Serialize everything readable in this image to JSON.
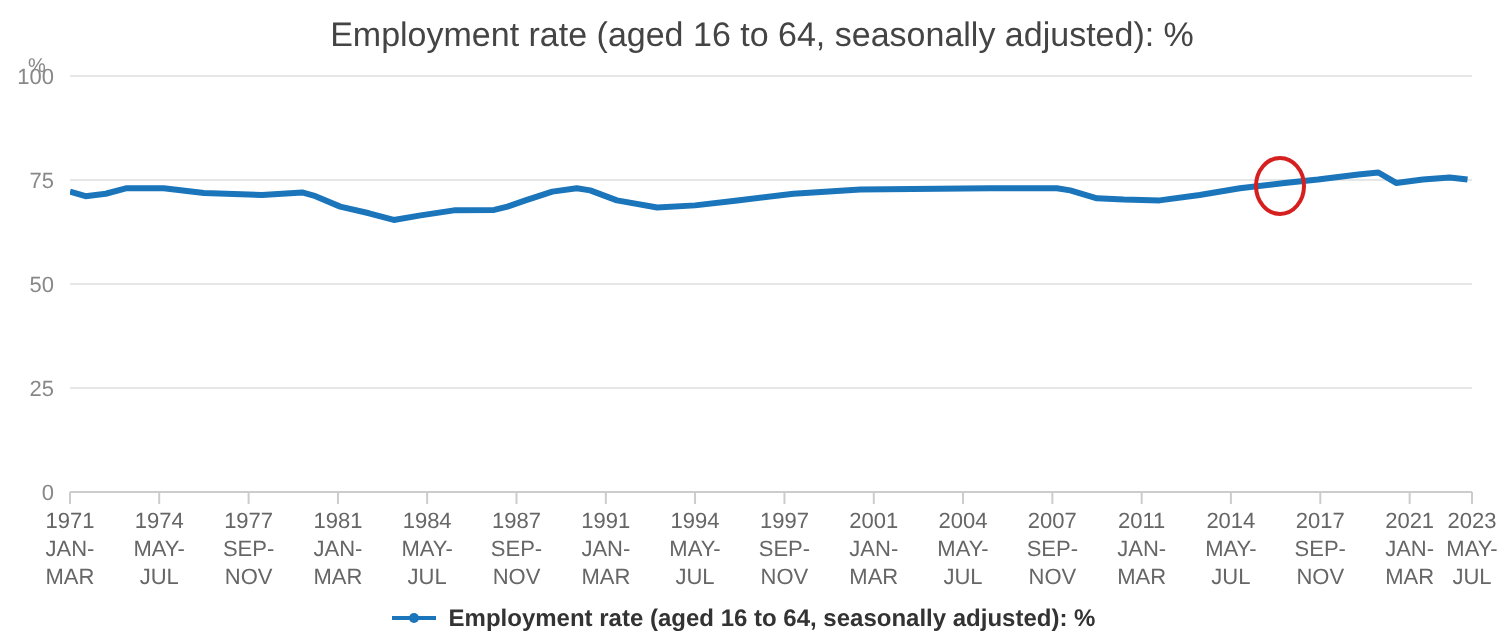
{
  "chart_data": {
    "type": "line",
    "title": "Employment rate (aged 16 to 64, seasonally adjusted): %",
    "ylabel": "%",
    "x": [
      "1971-01",
      "1971-08",
      "1972-05",
      "1973-02",
      "1974-07",
      "1976-01",
      "1978-03",
      "1979-09",
      "1980-03",
      "1981-02",
      "1982-03",
      "1983-02",
      "1984-02",
      "1985-05",
      "1986-11",
      "1987-05",
      "1988-01",
      "1989-01",
      "1989-12",
      "1990-06",
      "1991-06",
      "1992-12",
      "1994-05",
      "1995-11",
      "1998-01",
      "2000-07",
      "2005-05",
      "2007-11",
      "2008-05",
      "2009-05",
      "2010-05",
      "2011-09",
      "2013-03",
      "2014-09",
      "2016-05",
      "2017-08",
      "2019-02",
      "2019-11",
      "2020-07",
      "2021-07",
      "2022-07",
      "2023-03"
    ],
    "series": [
      {
        "name": "Employment rate (aged 16 to 64, seasonally adjusted): %",
        "color": "#1a75bb",
        "values": [
          72.2,
          71.1,
          71.7,
          73.0,
          73.0,
          71.9,
          71.4,
          72.0,
          71.1,
          68.6,
          67.0,
          65.4,
          66.5,
          67.7,
          67.8,
          68.6,
          70.1,
          72.2,
          73.0,
          72.5,
          70.1,
          68.4,
          68.9,
          70.0,
          71.7,
          72.7,
          73.0,
          73.0,
          72.5,
          70.6,
          70.3,
          70.1,
          71.4,
          73.0,
          74.3,
          75.1,
          76.3,
          76.8,
          74.3,
          75.1,
          75.6,
          75.1
        ]
      }
    ],
    "xlim": [
      "1971-01",
      "2023-05"
    ],
    "xticks": [
      {
        "value": "1971-01",
        "label": "1971 JAN-MAR"
      },
      {
        "value": "1974-05",
        "label": "1974 MAY-JUL"
      },
      {
        "value": "1977-09",
        "label": "1977 SEP-NOV"
      },
      {
        "value": "1981-01",
        "label": "1981 JAN-MAR"
      },
      {
        "value": "1984-05",
        "label": "1984 MAY-JUL"
      },
      {
        "value": "1987-09",
        "label": "1987 SEP-NOV"
      },
      {
        "value": "1991-01",
        "label": "1991 JAN-MAR"
      },
      {
        "value": "1994-05",
        "label": "1994 MAY-JUL"
      },
      {
        "value": "1997-09",
        "label": "1997 SEP-NOV"
      },
      {
        "value": "2001-01",
        "label": "2001 JAN-MAR"
      },
      {
        "value": "2004-05",
        "label": "2004 MAY-JUL"
      },
      {
        "value": "2007-09",
        "label": "2007 SEP-NOV"
      },
      {
        "value": "2011-01",
        "label": "2011 JAN-MAR"
      },
      {
        "value": "2014-05",
        "label": "2014 MAY-JUL"
      },
      {
        "value": "2017-09",
        "label": "2017 SEP-NOV"
      },
      {
        "value": "2021-01",
        "label": "2021 JAN-MAR"
      },
      {
        "value": "2023-05",
        "label": "2023 MAY-JUL"
      }
    ],
    "ylim": [
      0,
      100
    ],
    "yticks": [
      0,
      25,
      50,
      75,
      100
    ],
    "grid": "y",
    "legend": "bottom",
    "marker": "none",
    "line_style": "solid"
  }
}
